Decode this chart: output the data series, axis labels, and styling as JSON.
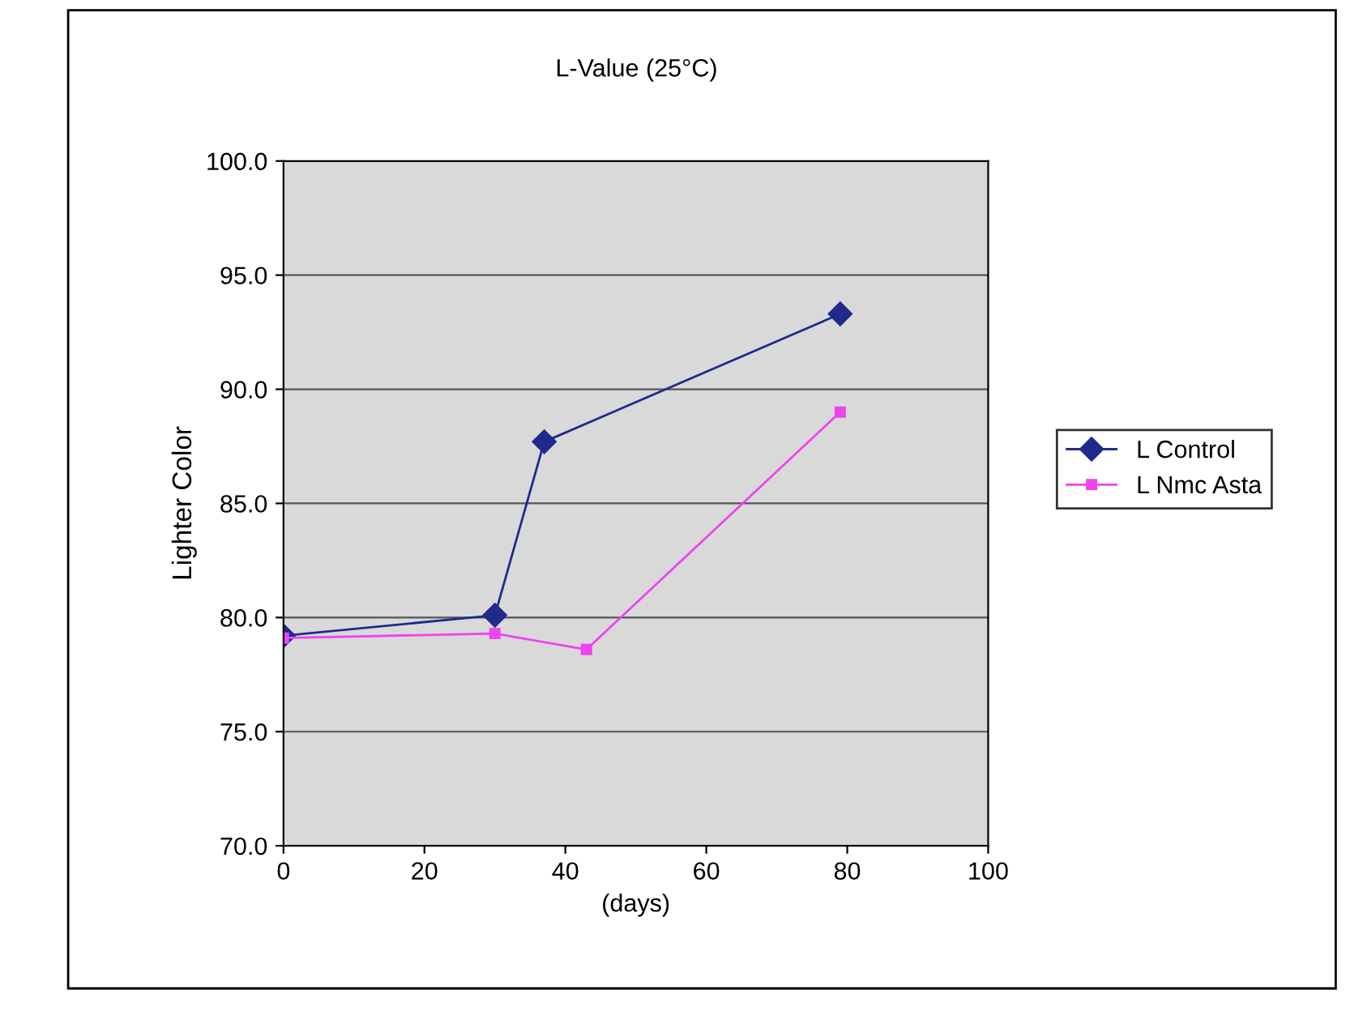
{
  "chart_data": {
    "type": "line",
    "title": "L-Value (25°C)",
    "xlabel": "(days)",
    "ylabel": "Lighter Color",
    "xlim": [
      0,
      100
    ],
    "xticks": [
      0,
      20,
      40,
      60,
      80,
      100
    ],
    "ylim": [
      70,
      100
    ],
    "yticks": [
      {
        "value": 70,
        "label": "70.0"
      },
      {
        "value": 75,
        "label": "75.0"
      },
      {
        "value": 80,
        "label": "80.0"
      },
      {
        "value": 85,
        "label": "85.0"
      },
      {
        "value": 90,
        "label": "90.0"
      },
      {
        "value": 95,
        "label": "95.0"
      },
      {
        "value": 100,
        "label": "100.0"
      }
    ],
    "grid": "y",
    "legend": "right",
    "line_style": "solid",
    "series": [
      {
        "name": "L Control",
        "color": "#1f2a8c",
        "marker": "diamond",
        "x": [
          0,
          30,
          37,
          79
        ],
        "values": [
          79.2,
          80.1,
          87.7,
          93.3
        ]
      },
      {
        "name": "L Nmc Asta",
        "color": "#ee44ee",
        "marker": "square",
        "x": [
          0,
          30,
          43,
          79
        ],
        "values": [
          79.1,
          79.3,
          78.6,
          89.0
        ]
      }
    ]
  }
}
